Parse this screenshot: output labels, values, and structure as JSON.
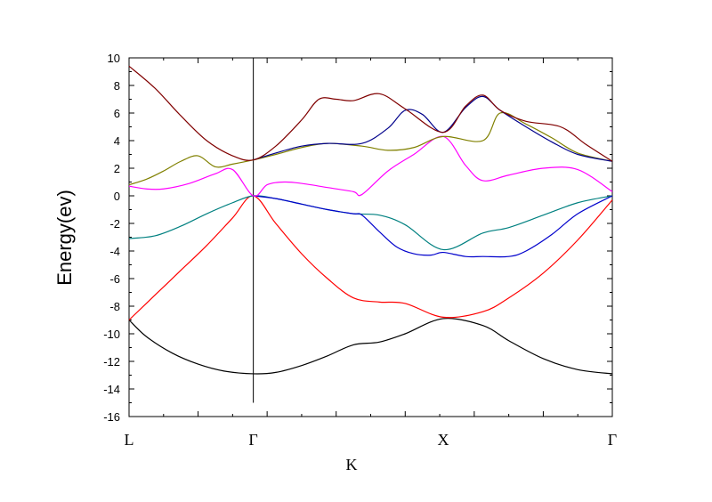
{
  "chart_data": {
    "type": "line",
    "title": "",
    "xlabel": "K",
    "ylabel": "Energy(ev)",
    "xlim": [
      0,
      2.8
    ],
    "ylim": [
      -16,
      10
    ],
    "ytick_values": [
      10,
      8,
      6,
      4,
      2,
      0,
      -2,
      -4,
      -6,
      -8,
      -10,
      -12,
      -14,
      -16
    ],
    "ytick_labels": [
      "10",
      "8",
      "6",
      "4",
      "2",
      "0",
      "-2",
      "-4",
      "-6",
      "-8",
      "-10",
      "-12",
      "-14",
      "-16"
    ],
    "high_symmetry_points": [
      {
        "label": "L",
        "x": 0.0
      },
      {
        "label": "Γ",
        "x": 0.72
      },
      {
        "label": "X",
        "x": 1.82
      },
      {
        "label": "Γ",
        "x": 2.8
      }
    ],
    "vertical_line_x": 0.72,
    "series": [
      {
        "color": "#000000",
        "x": [
          0,
          0.1,
          0.25,
          0.4,
          0.55,
          0.72,
          0.85,
          1.0,
          1.15,
          1.3,
          1.45,
          1.6,
          1.82,
          2.05,
          2.2,
          2.4,
          2.6,
          2.8
        ],
        "y": [
          -9.0,
          -10.2,
          -11.4,
          -12.2,
          -12.7,
          -12.9,
          -12.8,
          -12.3,
          -11.6,
          -10.8,
          -10.6,
          -10.0,
          -8.9,
          -9.4,
          -10.5,
          -11.8,
          -12.6,
          -12.9
        ]
      },
      {
        "color": "#ff0000",
        "x": [
          0,
          0.15,
          0.3,
          0.45,
          0.6,
          0.72,
          0.85,
          1.0,
          1.15,
          1.3,
          1.45,
          1.6,
          1.82,
          2.05,
          2.2,
          2.4,
          2.6,
          2.8
        ],
        "y": [
          -9.0,
          -7.2,
          -5.4,
          -3.6,
          -1.6,
          0.0,
          -2.0,
          -4.2,
          -6.0,
          -7.4,
          -7.7,
          -7.8,
          -8.8,
          -8.4,
          -7.4,
          -5.6,
          -3.2,
          -0.3
        ]
      },
      {
        "color": "#008080",
        "x": [
          0,
          0.15,
          0.3,
          0.45,
          0.6,
          0.72,
          0.85,
          1.0,
          1.15,
          1.3,
          1.45,
          1.6,
          1.82,
          2.05,
          2.2,
          2.4,
          2.6,
          2.8
        ],
        "y": [
          -3.1,
          -2.9,
          -2.2,
          -1.3,
          -0.5,
          0.0,
          -0.2,
          -0.6,
          -1.0,
          -1.3,
          -1.4,
          -2.1,
          -3.9,
          -2.7,
          -2.3,
          -1.4,
          -0.5,
          0.0
        ]
      },
      {
        "color": "#0000cc",
        "x": [
          0.72,
          0.85,
          1.0,
          1.15,
          1.3,
          1.35,
          1.45,
          1.55,
          1.65,
          1.75,
          1.82,
          1.95,
          2.05,
          2.2,
          2.3,
          2.45,
          2.6,
          2.8
        ],
        "y": [
          0.0,
          -0.2,
          -0.6,
          -1.0,
          -1.3,
          -1.4,
          -2.6,
          -3.7,
          -4.2,
          -4.3,
          -4.1,
          -4.4,
          -4.4,
          -4.4,
          -4.0,
          -2.8,
          -1.3,
          0.0
        ]
      },
      {
        "color": "#ff00ff",
        "x": [
          0,
          0.1,
          0.2,
          0.35,
          0.5,
          0.6,
          0.72,
          0.8,
          0.9,
          1.0,
          1.15,
          1.3,
          1.35,
          1.5,
          1.65,
          1.82,
          1.95,
          2.05,
          2.2,
          2.4,
          2.6,
          2.8
        ],
        "y": [
          0.7,
          0.5,
          0.5,
          0.9,
          1.6,
          1.9,
          0.0,
          0.8,
          1.0,
          0.9,
          0.6,
          0.3,
          0.1,
          1.8,
          3.0,
          4.3,
          2.2,
          1.1,
          1.5,
          2.0,
          1.9,
          0.3
        ]
      },
      {
        "color": "#808000",
        "x": [
          0,
          0.1,
          0.2,
          0.3,
          0.4,
          0.5,
          0.6,
          0.72,
          0.85,
          1.0,
          1.15,
          1.35,
          1.5,
          1.65,
          1.82,
          2.05,
          2.15,
          2.3,
          2.45,
          2.6,
          2.8
        ],
        "y": [
          0.8,
          1.2,
          1.8,
          2.5,
          2.9,
          2.1,
          2.3,
          2.6,
          3.0,
          3.5,
          3.8,
          3.6,
          3.3,
          3.5,
          4.3,
          4.0,
          6.0,
          5.2,
          4.2,
          3.1,
          2.5
        ]
      },
      {
        "color": "#00008b",
        "x": [
          0.72,
          0.85,
          1.0,
          1.15,
          1.35,
          1.5,
          1.6,
          1.7,
          1.82,
          1.95,
          2.05,
          2.15,
          2.3,
          2.45,
          2.6,
          2.8
        ],
        "y": [
          2.6,
          3.1,
          3.6,
          3.8,
          3.8,
          4.9,
          6.2,
          5.9,
          4.6,
          6.4,
          7.2,
          6.2,
          5.0,
          3.9,
          3.0,
          2.5
        ]
      },
      {
        "color": "#800000",
        "x": [
          0,
          0.15,
          0.3,
          0.45,
          0.6,
          0.72,
          0.85,
          1.0,
          1.1,
          1.2,
          1.3,
          1.45,
          1.6,
          1.82,
          1.95,
          2.05,
          2.15,
          2.3,
          2.5,
          2.65,
          2.8
        ],
        "y": [
          9.4,
          7.8,
          5.8,
          4.0,
          2.9,
          2.6,
          3.6,
          5.5,
          7.0,
          7.0,
          6.9,
          7.4,
          6.3,
          4.6,
          6.5,
          7.3,
          6.2,
          5.4,
          5.0,
          3.7,
          2.5
        ]
      }
    ]
  }
}
